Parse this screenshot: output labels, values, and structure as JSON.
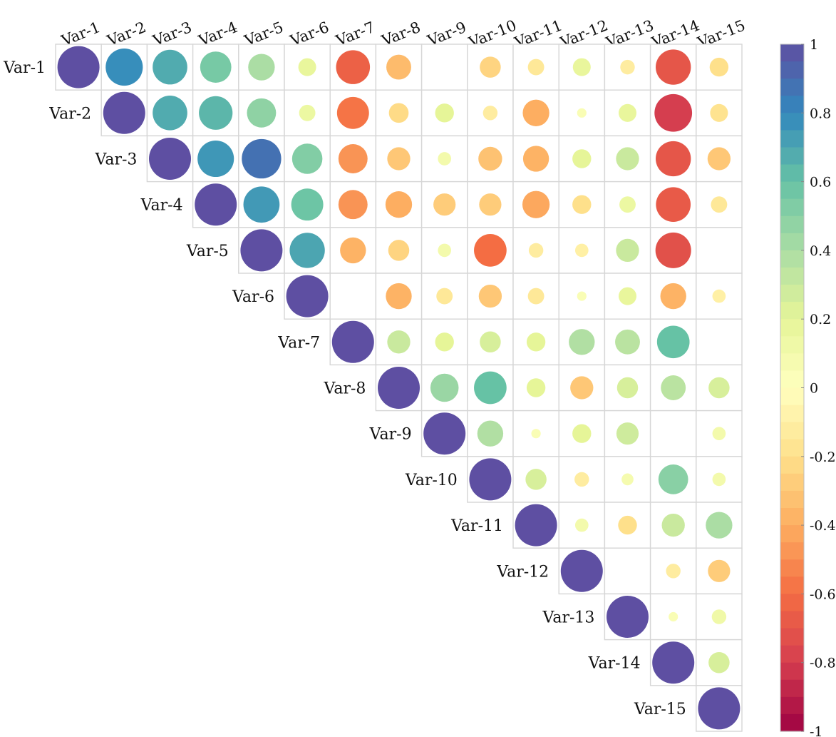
{
  "chart_data": {
    "type": "heatmap",
    "subtype": "correlation-upper-triangle-circles",
    "title": "",
    "variables": [
      "Var-1",
      "Var-2",
      "Var-3",
      "Var-4",
      "Var-5",
      "Var-6",
      "Var-7",
      "Var-8",
      "Var-9",
      "Var-10",
      "Var-11",
      "Var-12",
      "Var-13",
      "Var-14",
      "Var-15"
    ],
    "upper_triangle_rows": [
      [
        1,
        0.78,
        0.68,
        0.55,
        0.4,
        0.18,
        -0.65,
        -0.35,
        0,
        -0.25,
        -0.15,
        0.18,
        -0.12,
        -0.7,
        -0.2
      ],
      [
        1,
        0.68,
        0.64,
        0.48,
        0.15,
        -0.58,
        -0.22,
        0.2,
        -0.12,
        -0.4,
        0.05,
        0.18,
        -0.8,
        -0.18
      ],
      [
        1,
        0.75,
        0.88,
        0.52,
        -0.48,
        -0.3,
        0.1,
        -0.32,
        -0.38,
        0.2,
        0.3,
        -0.7,
        -0.3
      ],
      [
        1,
        0.74,
        0.58,
        -0.48,
        -0.4,
        -0.28,
        -0.28,
        -0.42,
        -0.2,
        0.15,
        -0.68,
        -0.15
      ],
      [
        1,
        0.7,
        -0.38,
        -0.25,
        0.1,
        -0.6,
        -0.12,
        -0.1,
        0.3,
        -0.72,
        0
      ],
      [
        1,
        0,
        -0.38,
        -0.15,
        -0.3,
        -0.15,
        0.05,
        0.18,
        -0.38,
        -0.1
      ],
      [
        1,
        0.3,
        0.2,
        0.25,
        0.2,
        0.38,
        0.35,
        0.6,
        0
      ],
      [
        1,
        0.45,
        0.6,
        0.2,
        -0.3,
        0.25,
        0.35,
        0.25
      ],
      [
        1,
        0.38,
        0.05,
        0.2,
        0.28,
        0,
        0.1
      ],
      [
        1,
        0.25,
        -0.12,
        0.08,
        0.5,
        0.1
      ],
      [
        1,
        0.1,
        -0.2,
        0.3,
        0.4
      ],
      [
        1,
        0,
        -0.12,
        -0.28
      ],
      [
        1,
        0.05,
        0.12
      ],
      [
        1,
        0.25
      ],
      [
        1
      ]
    ],
    "colorbar": {
      "range": [
        -1,
        1
      ],
      "tick_labels": [
        "1",
        "0.8",
        "0.6",
        "0.4",
        "0.2",
        "0",
        "-0.2",
        "-0.4",
        "-0.6",
        "-0.8",
        "-1"
      ],
      "palette_bottom_to_top": [
        "#9e0142",
        "#d53e4f",
        "#f46d43",
        "#fdae61",
        "#fee08b",
        "#ffffbf",
        "#e6f598",
        "#abdda4",
        "#66c2a5",
        "#3288bd",
        "#5e4fa2"
      ]
    },
    "grid": true,
    "legend": "right-colorbar"
  }
}
